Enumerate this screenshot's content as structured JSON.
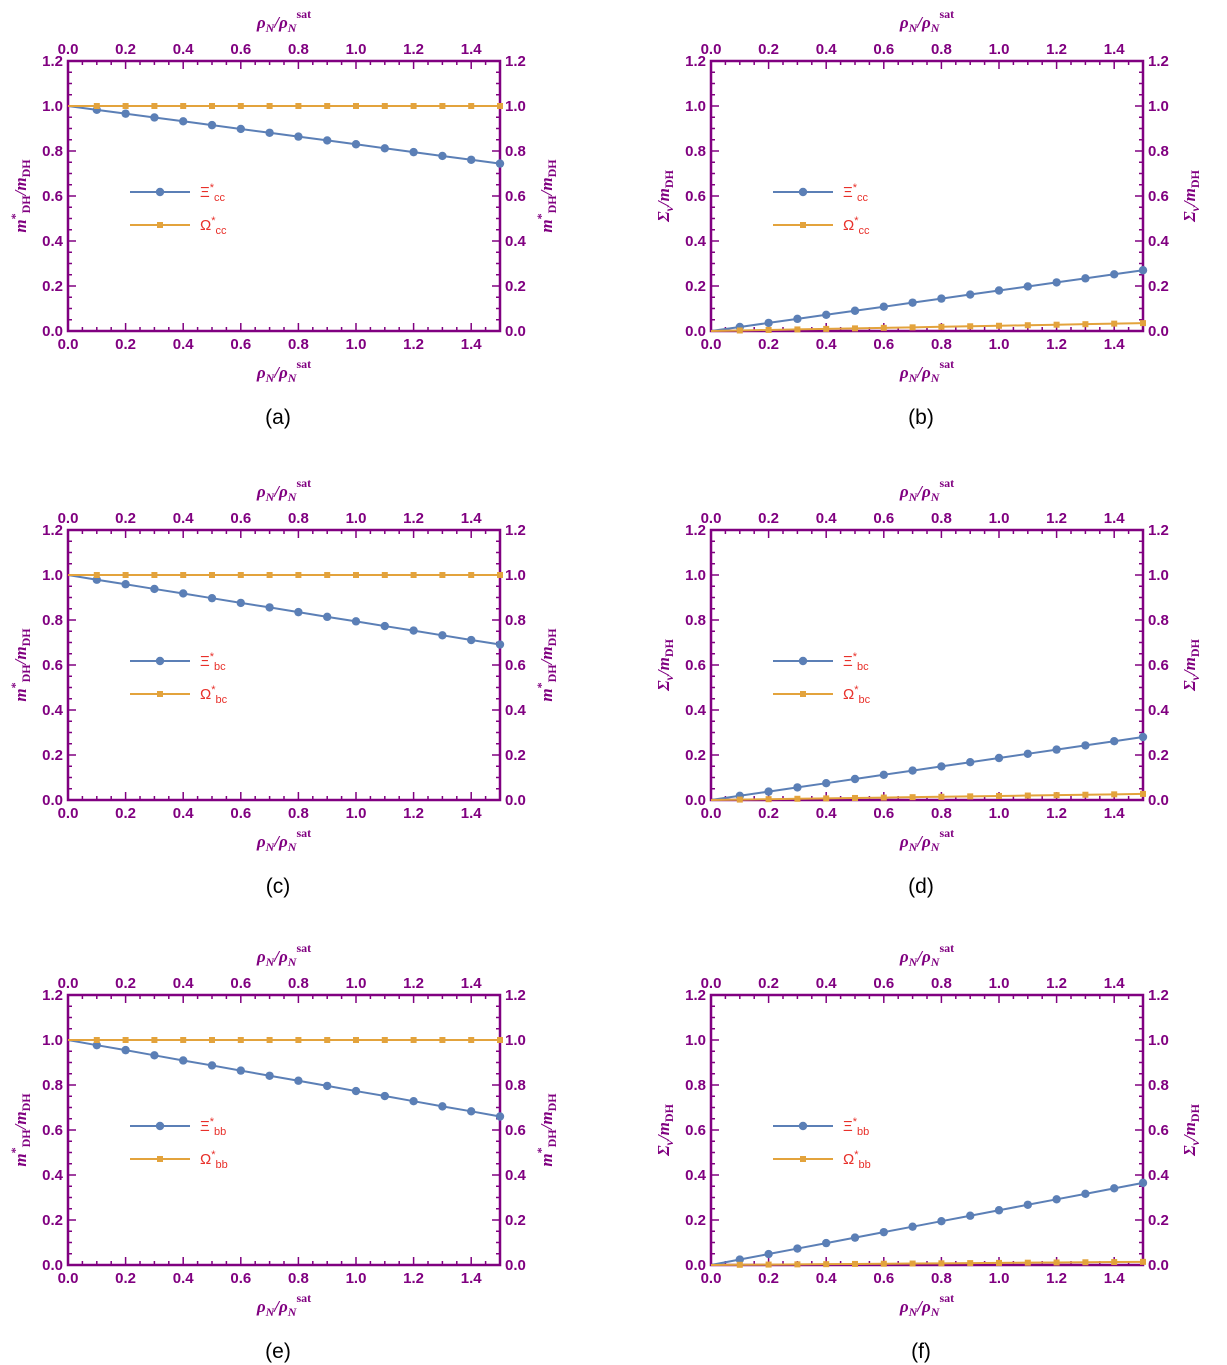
{
  "chart_data": [
    {
      "panel_label": "(a)",
      "type": "line",
      "xlabel_top": "ρN/ρNsat",
      "xlabel_bottom": "ρN/ρNsat",
      "ylabel_left": "m*DH/mDH",
      "ylabel_right": "m*DH/mDH",
      "xlim": [
        0,
        1.5
      ],
      "ylim": [
        0,
        1.2
      ],
      "xticks": [
        "0.0",
        "0.2",
        "0.4",
        "0.6",
        "0.8",
        "1.0",
        "1.2",
        "1.4"
      ],
      "yticks": [
        "0.0",
        "0.2",
        "0.4",
        "0.6",
        "0.8",
        "1.0",
        "1.2"
      ],
      "legend_position": "center-left",
      "x": [
        0.0,
        0.1,
        0.2,
        0.3,
        0.4,
        0.5,
        0.6,
        0.7,
        0.8,
        0.9,
        1.0,
        1.1,
        1.2,
        1.3,
        1.4,
        1.5
      ],
      "series": [
        {
          "name": "Ξ*cc",
          "marker": "circle",
          "color": "#5b7fb6",
          "values": [
            1.0,
            0.983,
            0.966,
            0.949,
            0.932,
            0.915,
            0.898,
            0.881,
            0.864,
            0.847,
            0.83,
            0.812,
            0.795,
            0.778,
            0.761,
            0.744
          ]
        },
        {
          "name": "Ω*cc",
          "marker": "square",
          "color": "#e3a33c",
          "values": [
            1.0,
            1.0,
            1.0,
            1.0,
            1.0,
            1.0,
            1.0,
            1.0,
            1.0,
            1.0,
            1.0,
            1.0,
            1.0,
            1.0,
            1.0,
            1.0
          ]
        }
      ]
    },
    {
      "panel_label": "(b)",
      "type": "line",
      "xlabel_top": "ρN/ρNsat",
      "xlabel_bottom": "ρN/ρNsat",
      "ylabel_left": "Σv/mDH",
      "ylabel_right": "Σv/mDH",
      "xlim": [
        0,
        1.5
      ],
      "ylim": [
        0,
        1.2
      ],
      "xticks": [
        "0.0",
        "0.2",
        "0.4",
        "0.6",
        "0.8",
        "1.0",
        "1.2",
        "1.4"
      ],
      "yticks": [
        "0.0",
        "0.2",
        "0.4",
        "0.6",
        "0.8",
        "1.0",
        "1.2"
      ],
      "legend_position": "center-left",
      "x": [
        0.0,
        0.1,
        0.2,
        0.3,
        0.4,
        0.5,
        0.6,
        0.7,
        0.8,
        0.9,
        1.0,
        1.1,
        1.2,
        1.3,
        1.4,
        1.5
      ],
      "series": [
        {
          "name": "Ξ*cc",
          "marker": "circle",
          "color": "#5b7fb6",
          "values": [
            0.0,
            0.018,
            0.036,
            0.054,
            0.072,
            0.09,
            0.108,
            0.126,
            0.144,
            0.162,
            0.18,
            0.198,
            0.216,
            0.234,
            0.252,
            0.27
          ]
        },
        {
          "name": "Ω*cc",
          "marker": "square",
          "color": "#e3a33c",
          "values": [
            0.0,
            0.0023,
            0.0047,
            0.007,
            0.0093,
            0.0117,
            0.014,
            0.0163,
            0.0187,
            0.021,
            0.0233,
            0.0257,
            0.028,
            0.0303,
            0.0327,
            0.035
          ]
        }
      ]
    },
    {
      "panel_label": "(c)",
      "type": "line",
      "xlabel_top": "ρN/ρNsat",
      "xlabel_bottom": "ρN/ρNsat",
      "ylabel_left": "m*DH/mDH",
      "ylabel_right": "m*DH/mDH",
      "xlim": [
        0,
        1.5
      ],
      "ylim": [
        0,
        1.2
      ],
      "xticks": [
        "0.0",
        "0.2",
        "0.4",
        "0.6",
        "0.8",
        "1.0",
        "1.2",
        "1.4"
      ],
      "yticks": [
        "0.0",
        "0.2",
        "0.4",
        "0.6",
        "0.8",
        "1.0",
        "1.2"
      ],
      "legend_position": "center-left",
      "x": [
        0.0,
        0.1,
        0.2,
        0.3,
        0.4,
        0.5,
        0.6,
        0.7,
        0.8,
        0.9,
        1.0,
        1.1,
        1.2,
        1.3,
        1.4,
        1.5
      ],
      "series": [
        {
          "name": "Ξ*bc",
          "marker": "circle",
          "color": "#5b7fb6",
          "values": [
            1.0,
            0.979,
            0.959,
            0.938,
            0.918,
            0.897,
            0.876,
            0.856,
            0.835,
            0.814,
            0.794,
            0.773,
            0.753,
            0.732,
            0.711,
            0.691
          ]
        },
        {
          "name": "Ω*bc",
          "marker": "square",
          "color": "#e3a33c",
          "values": [
            1.0,
            1.0,
            1.0,
            1.0,
            1.0,
            1.0,
            1.0,
            1.0,
            1.0,
            1.0,
            1.0,
            1.0,
            1.0,
            1.0,
            1.0,
            1.0
          ]
        }
      ]
    },
    {
      "panel_label": "(d)",
      "type": "line",
      "xlabel_top": "ρN/ρNsat",
      "xlabel_bottom": "ρN/ρNsat",
      "ylabel_left": "Σv/mDH",
      "ylabel_right": "Σv/mDH",
      "xlim": [
        0,
        1.5
      ],
      "ylim": [
        0,
        1.2
      ],
      "xticks": [
        "0.0",
        "0.2",
        "0.4",
        "0.6",
        "0.8",
        "1.0",
        "1.2",
        "1.4"
      ],
      "yticks": [
        "0.0",
        "0.2",
        "0.4",
        "0.6",
        "0.8",
        "1.0",
        "1.2"
      ],
      "legend_position": "center-left",
      "x": [
        0.0,
        0.1,
        0.2,
        0.3,
        0.4,
        0.5,
        0.6,
        0.7,
        0.8,
        0.9,
        1.0,
        1.1,
        1.2,
        1.3,
        1.4,
        1.5
      ],
      "series": [
        {
          "name": "Ξ*bc",
          "marker": "circle",
          "color": "#5b7fb6",
          "values": [
            0.0,
            0.0187,
            0.0373,
            0.056,
            0.0747,
            0.0933,
            0.112,
            0.1307,
            0.1493,
            0.168,
            0.1867,
            0.2053,
            0.224,
            0.2427,
            0.2613,
            0.28
          ]
        },
        {
          "name": "Ω*bc",
          "marker": "square",
          "color": "#e3a33c",
          "values": [
            0.0,
            0.0018,
            0.0036,
            0.0054,
            0.0072,
            0.009,
            0.0108,
            0.0126,
            0.0144,
            0.0162,
            0.018,
            0.0198,
            0.0216,
            0.0234,
            0.0252,
            0.027
          ]
        }
      ]
    },
    {
      "panel_label": "(e)",
      "type": "line",
      "xlabel_top": "ρN/ρNsat",
      "xlabel_bottom": "ρN/ρNsat",
      "ylabel_left": "m*DH/mDH",
      "ylabel_right": "m*DH/mDH",
      "xlim": [
        0,
        1.5
      ],
      "ylim": [
        0,
        1.2
      ],
      "xticks": [
        "0.0",
        "0.2",
        "0.4",
        "0.6",
        "0.8",
        "1.0",
        "1.2",
        "1.4"
      ],
      "yticks": [
        "0.0",
        "0.2",
        "0.4",
        "0.6",
        "0.8",
        "1.0",
        "1.2"
      ],
      "legend_position": "center-left",
      "x": [
        0.0,
        0.1,
        0.2,
        0.3,
        0.4,
        0.5,
        0.6,
        0.7,
        0.8,
        0.9,
        1.0,
        1.1,
        1.2,
        1.3,
        1.4,
        1.5
      ],
      "series": [
        {
          "name": "Ξ*bb",
          "marker": "circle",
          "color": "#5b7fb6",
          "values": [
            1.0,
            0.977,
            0.955,
            0.932,
            0.909,
            0.887,
            0.864,
            0.841,
            0.819,
            0.796,
            0.773,
            0.751,
            0.728,
            0.705,
            0.683,
            0.66
          ]
        },
        {
          "name": "Ω*bb",
          "marker": "square",
          "color": "#e3a33c",
          "values": [
            1.0,
            1.0,
            1.0,
            1.0,
            1.0,
            1.0,
            1.0,
            1.0,
            1.0,
            1.0,
            1.0,
            1.0,
            1.0,
            1.0,
            1.0,
            1.0
          ]
        }
      ]
    },
    {
      "panel_label": "(f)",
      "type": "line",
      "xlabel_top": "ρN/ρNsat",
      "xlabel_bottom": "ρN/ρNsat",
      "ylabel_left": "Σv/mDH",
      "ylabel_right": "Σv/mDH",
      "xlim": [
        0,
        1.5
      ],
      "ylim": [
        0,
        1.2
      ],
      "xticks": [
        "0.0",
        "0.2",
        "0.4",
        "0.6",
        "0.8",
        "1.0",
        "1.2",
        "1.4"
      ],
      "yticks": [
        "0.0",
        "0.2",
        "0.4",
        "0.6",
        "0.8",
        "1.0",
        "1.2"
      ],
      "legend_position": "center-left",
      "x": [
        0.0,
        0.1,
        0.2,
        0.3,
        0.4,
        0.5,
        0.6,
        0.7,
        0.8,
        0.9,
        1.0,
        1.1,
        1.2,
        1.3,
        1.4,
        1.5
      ],
      "series": [
        {
          "name": "Ξ*bb",
          "marker": "circle",
          "color": "#5b7fb6",
          "values": [
            0.0,
            0.0243,
            0.0487,
            0.073,
            0.0973,
            0.1217,
            0.146,
            0.1703,
            0.1947,
            0.219,
            0.2433,
            0.2677,
            0.292,
            0.3163,
            0.3407,
            0.365
          ]
        },
        {
          "name": "Ω*bb",
          "marker": "square",
          "color": "#e3a33c",
          "values": [
            0.0,
            0.0009,
            0.0019,
            0.0028,
            0.0037,
            0.0047,
            0.0056,
            0.0065,
            0.0075,
            0.0084,
            0.0093,
            0.0103,
            0.0112,
            0.0121,
            0.0131,
            0.014
          ]
        }
      ]
    }
  ]
}
